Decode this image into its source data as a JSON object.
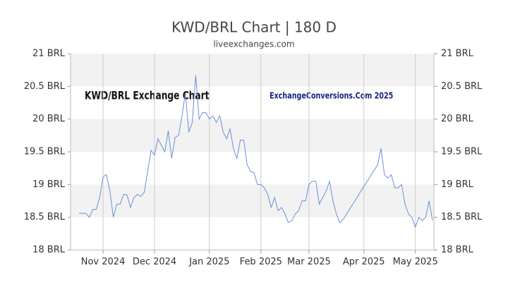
{
  "chart_data": {
    "type": "line",
    "title": "KWD/BRL Chart | 180 D",
    "subtitle": "liveexchanges.com",
    "annotations": [
      "KWD/BRL Exchange Chart",
      "ExchangeConversions.Com 2025"
    ],
    "color": "#6b91d9",
    "categories": [
      null,
      null,
      null,
      null,
      null,
      null,
      null,
      "Nov 2024",
      null,
      null,
      null,
      null,
      null,
      null,
      null,
      null,
      null,
      null,
      null,
      null,
      null,
      null,
      "Dec 2024",
      null,
      null,
      null,
      null,
      null,
      null,
      null,
      null,
      null,
      null,
      null,
      null,
      null,
      null,
      null,
      "Jan 2025",
      null,
      null,
      null,
      null,
      null,
      null,
      null,
      null,
      null,
      null,
      null,
      null,
      null,
      null,
      "Feb 2025",
      null,
      null,
      null,
      null,
      null,
      null,
      null,
      null,
      null,
      null,
      null,
      null,
      null,
      "Mar 2025",
      null,
      null,
      null,
      null,
      null,
      null,
      null,
      null,
      null,
      null,
      null,
      null,
      null,
      null,
      null,
      "Apr 2025",
      null,
      null,
      null,
      null,
      null,
      null,
      null,
      null,
      null,
      null,
      null,
      null,
      null,
      null,
      "May 2025",
      null,
      null,
      null,
      null,
      null
    ],
    "values": [
      18.56,
      18.56,
      18.56,
      18.5,
      18.62,
      18.62,
      18.8,
      19.12,
      19.15,
      18.9,
      18.5,
      18.7,
      18.7,
      18.85,
      18.84,
      18.65,
      18.8,
      18.85,
      18.82,
      18.88,
      19.2,
      19.52,
      19.45,
      19.7,
      19.6,
      19.5,
      19.82,
      19.4,
      19.72,
      19.75,
      20.05,
      20.4,
      19.8,
      19.95,
      20.67,
      20.0,
      20.1,
      20.1,
      20.0,
      20.05,
      19.95,
      20.05,
      19.8,
      19.7,
      19.85,
      19.55,
      19.4,
      19.68,
      19.68,
      19.3,
      19.2,
      19.18,
      19.0,
      19.0,
      18.95,
      18.85,
      18.65,
      18.8,
      18.6,
      18.65,
      18.55,
      18.42,
      18.45,
      18.55,
      18.6,
      18.75,
      18.75,
      19.0,
      19.05,
      19.05,
      18.7,
      18.8,
      18.9,
      19.05,
      18.75,
      18.55,
      18.42,
      18.47,
      18.55,
      18.64,
      18.72,
      18.8,
      18.89,
      18.97,
      19.05,
      19.14,
      19.22,
      19.3,
      19.55,
      19.15,
      19.1,
      19.15,
      18.95,
      18.95,
      19.0,
      18.7,
      18.55,
      18.5,
      18.35,
      18.5,
      18.45,
      18.5,
      18.75,
      18.45
    ],
    "ylim": [
      18,
      21
    ],
    "yticks": [
      {
        "value": 18,
        "label": "18 BRL"
      },
      {
        "value": 18.5,
        "label": "18.5 BRL"
      },
      {
        "value": 19,
        "label": "19 BRL"
      },
      {
        "value": 19.5,
        "label": "19.5 BRL"
      },
      {
        "value": 20,
        "label": "20 BRL"
      },
      {
        "value": 20.5,
        "label": "20.5 BRL"
      },
      {
        "value": 21,
        "label": "21 BRL"
      }
    ],
    "y2lim": [
      18,
      21
    ],
    "y2ticks": [
      {
        "value": 18,
        "label": "18 BRL"
      },
      {
        "value": 18.5,
        "label": "18.5 BRL"
      },
      {
        "value": 19,
        "label": "19 BRL"
      },
      {
        "value": 19.5,
        "label": "19.5 BRL"
      },
      {
        "value": 20,
        "label": "20 BRL"
      },
      {
        "value": 20.5,
        "label": "20.5 BRL"
      },
      {
        "value": 21,
        "label": "21 BRL"
      }
    ],
    "grid": true
  }
}
